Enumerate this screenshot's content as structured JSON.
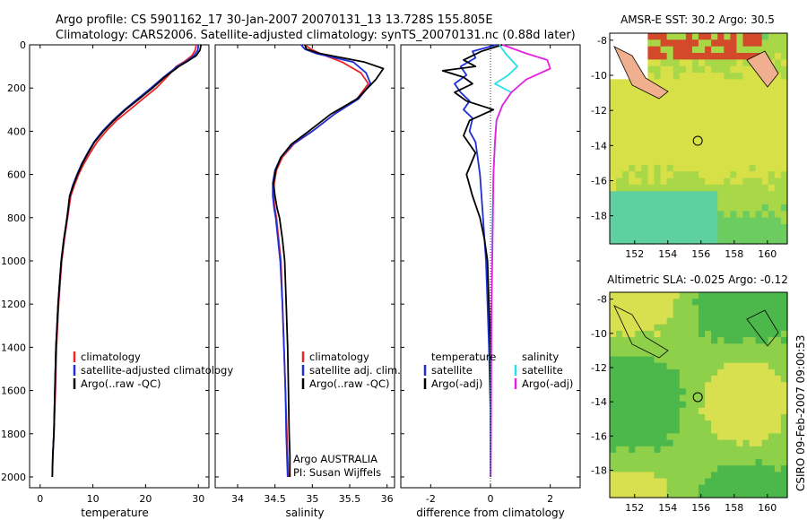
{
  "header": {
    "line1": "Argo profile: CS 5901162_17 30-Jan-2007 20070131_13 13.728S 155.805E",
    "line2": "Climatology: CARS2006. Satellite-adjusted climatology: synTS_20070131.nc (0.88d later)"
  },
  "credit": "CSIRO 09-Feb-2007 09:00:53",
  "float_info": {
    "line1": "Argo AUSTRALIA",
    "line2": "PI: Susan Wijffels"
  },
  "colors": {
    "climatology": "#e8262a",
    "satellite_adjusted": "#1f2fd6",
    "argo": "#000000",
    "salinity_satellite": "#28e0e8",
    "salinity_argo": "#e820e0"
  },
  "chart_data": [
    {
      "type": "line",
      "id": "temperature",
      "xlabel": "temperature",
      "xlim": [
        -2,
        32
      ],
      "ylim": [
        0,
        2050
      ],
      "xticks": [
        0,
        10,
        20,
        30
      ],
      "yticks": [
        0,
        200,
        400,
        600,
        800,
        1000,
        1200,
        1400,
        1600,
        1800,
        2000
      ],
      "legend": [
        "climatology",
        "satellite-adjusted climatology",
        "Argo(..raw -QC)"
      ],
      "series": [
        {
          "name": "climatology",
          "color": "#e8262a",
          "x": [
            29.6,
            29.4,
            28.8,
            27.5,
            25.8,
            24.0,
            22.0,
            19.5,
            17.0,
            14.5,
            12.5,
            10.8,
            9.5,
            8.3,
            7.3,
            6.5,
            5.8,
            5.2,
            4.6,
            4.1,
            3.8,
            3.5,
            3.1,
            2.9,
            2.6,
            2.4
          ],
          "y": [
            0,
            25,
            50,
            75,
            100,
            150,
            200,
            250,
            300,
            350,
            400,
            450,
            500,
            550,
            600,
            650,
            700,
            800,
            900,
            1000,
            1100,
            1200,
            1400,
            1600,
            1800,
            1900
          ]
        },
        {
          "name": "satellite-adjusted climatology",
          "color": "#1f2fd6",
          "x": [
            30.0,
            29.9,
            29.2,
            27.8,
            26.0,
            23.4,
            21.0,
            18.5,
            16.0,
            13.8,
            11.8,
            10.2,
            9.0,
            7.9,
            7.0,
            6.2,
            5.6,
            5.1,
            4.5,
            4.0,
            3.7,
            3.4,
            3.0,
            2.8,
            2.6,
            2.4,
            2.3
          ],
          "y": [
            0,
            25,
            50,
            75,
            100,
            150,
            200,
            250,
            300,
            350,
            400,
            450,
            500,
            550,
            600,
            650,
            700,
            800,
            900,
            1000,
            1100,
            1200,
            1400,
            1600,
            1800,
            1900,
            2000
          ]
        },
        {
          "name": "Argo(..raw -QC)",
          "color": "#000000",
          "x": [
            30.5,
            30.3,
            29.6,
            28.0,
            26.3,
            23.6,
            21.3,
            18.8,
            16.2,
            14.0,
            12.0,
            10.3,
            9.1,
            8.0,
            7.1,
            6.3,
            5.6,
            5.1,
            4.5,
            4.0,
            3.7,
            3.4,
            3.0,
            2.8,
            2.6,
            2.4,
            2.3
          ],
          "y": [
            0,
            25,
            50,
            75,
            100,
            150,
            200,
            250,
            300,
            350,
            400,
            450,
            500,
            550,
            600,
            650,
            700,
            800,
            900,
            1000,
            1100,
            1200,
            1400,
            1600,
            1800,
            1900,
            2000
          ]
        }
      ]
    },
    {
      "type": "line",
      "id": "salinity",
      "xlabel": "salinity",
      "xlim": [
        33.7,
        36.1
      ],
      "ylim": [
        0,
        2050
      ],
      "xticks": [
        34,
        34.5,
        35,
        35.5,
        36
      ],
      "legend": [
        "climatology",
        "satellite adj. clim.",
        "Argo(..raw -QC)"
      ],
      "series": [
        {
          "name": "climatology",
          "color": "#e8262a",
          "x": [
            34.9,
            34.98,
            35.1,
            35.4,
            35.65,
            35.75,
            35.6,
            35.3,
            35.0,
            34.75,
            34.6,
            34.52,
            34.49,
            34.48,
            34.5,
            34.52,
            34.55,
            34.58,
            34.6,
            34.62,
            34.64,
            34.66,
            34.67,
            34.68
          ],
          "y": [
            0,
            20,
            40,
            80,
            130,
            180,
            250,
            320,
            400,
            460,
            520,
            580,
            640,
            700,
            760,
            800,
            900,
            1000,
            1200,
            1400,
            1600,
            1800,
            1900,
            2000
          ]
        },
        {
          "name": "satellite adj. clim.",
          "color": "#1f2fd6",
          "x": [
            34.85,
            34.9,
            35.05,
            35.55,
            35.72,
            35.78,
            35.62,
            35.3,
            35.0,
            34.74,
            34.58,
            34.5,
            34.47,
            34.47,
            34.49,
            34.51,
            34.54,
            34.57,
            34.6,
            34.62,
            34.64,
            34.65,
            34.66,
            34.67
          ],
          "y": [
            0,
            20,
            40,
            80,
            130,
            180,
            250,
            320,
            400,
            460,
            520,
            580,
            640,
            700,
            760,
            800,
            900,
            1000,
            1200,
            1400,
            1600,
            1800,
            1900,
            2000
          ]
        },
        {
          "name": "Argo(..raw -QC)",
          "color": "#000000",
          "x": [
            34.9,
            34.92,
            35.1,
            35.7,
            35.95,
            35.85,
            35.6,
            35.25,
            34.95,
            34.72,
            34.58,
            34.51,
            34.48,
            34.5,
            34.53,
            34.56,
            34.6,
            34.63,
            34.65,
            34.67,
            34.68,
            34.69,
            34.7,
            34.7
          ],
          "y": [
            0,
            20,
            40,
            80,
            110,
            160,
            250,
            320,
            400,
            460,
            520,
            580,
            640,
            700,
            760,
            800,
            900,
            1000,
            1200,
            1400,
            1600,
            1800,
            1900,
            2000
          ]
        }
      ]
    },
    {
      "type": "line",
      "id": "difference",
      "xlabel": "difference from climatology",
      "xlim": [
        -3,
        3
      ],
      "ylim": [
        0,
        2050
      ],
      "xticks": [
        -2,
        0,
        2
      ],
      "legend_left_title": "temperature",
      "legend_right_title": "salinity",
      "legend": [
        "satellite",
        "Argo(-adj)",
        "satellite",
        "Argo(-adj)"
      ],
      "series": [
        {
          "name": "temperature satellite",
          "color": "#1f2fd6",
          "x": [
            0.2,
            -0.6,
            -0.5,
            -1.0,
            -0.8,
            -1.2,
            -1.0,
            -0.7,
            -0.9,
            -0.6,
            -0.7,
            -0.5,
            -0.45,
            -0.35,
            -0.3,
            -0.25,
            -0.2,
            -0.15,
            -0.1,
            -0.05,
            0,
            0
          ],
          "y": [
            0,
            30,
            60,
            100,
            140,
            180,
            220,
            260,
            300,
            340,
            400,
            450,
            500,
            600,
            700,
            800,
            900,
            1000,
            1200,
            1400,
            1700,
            2000
          ]
        },
        {
          "name": "temperature Argo(-adj)",
          "color": "#000000",
          "x": [
            0.4,
            -0.3,
            -0.9,
            -0.5,
            -1.6,
            -0.9,
            -0.6,
            -1.2,
            -0.8,
            0.1,
            -0.7,
            -0.9,
            -0.5,
            -0.8,
            -0.6,
            -0.35,
            -0.2,
            -0.1,
            -0.05,
            0,
            0
          ],
          "y": [
            0,
            30,
            70,
            100,
            120,
            150,
            180,
            220,
            260,
            300,
            350,
            420,
            500,
            600,
            700,
            800,
            900,
            1000,
            1200,
            1400,
            2000
          ]
        },
        {
          "name": "salinity satellite",
          "color": "#28e0e8",
          "x": [
            0.3,
            0.5,
            0.9,
            0.6,
            0.15,
            0.7,
            0.4,
            0.2,
            0.15,
            0.1,
            0.07,
            0.05,
            0.03,
            0.02,
            0.01,
            0
          ],
          "y": [
            0,
            40,
            100,
            140,
            180,
            220,
            280,
            350,
            450,
            600,
            800,
            1000,
            1200,
            1400,
            1700,
            2000
          ]
        },
        {
          "name": "salinity Argo(-adj)",
          "color": "#e820e0",
          "x": [
            0.4,
            1.2,
            1.9,
            2.0,
            1.2,
            0.7,
            0.4,
            0.2,
            0.15,
            0.1,
            0.08,
            0.06,
            0.04,
            0.03,
            0.02,
            0.01
          ],
          "y": [
            0,
            40,
            70,
            110,
            160,
            220,
            280,
            350,
            450,
            600,
            800,
            1000,
            1200,
            1400,
            1700,
            2000
          ]
        }
      ]
    },
    {
      "type": "heatmap",
      "id": "sst_map",
      "title": "AMSR-E SST: 30.2 Argo: 30.5",
      "xlim": [
        150.5,
        161.2
      ],
      "ylim": [
        -19.6,
        -7.6
      ],
      "xticks": [
        152,
        154,
        156,
        158,
        160
      ],
      "yticks": [
        -8,
        -10,
        -12,
        -14,
        -16,
        -18
      ],
      "argo_position": {
        "lon": 155.805,
        "lat": -13.728
      }
    },
    {
      "type": "heatmap",
      "id": "sla_map",
      "title": "Altimetric SLA: -0.025 Argo: -0.12",
      "xlim": [
        150.5,
        161.2
      ],
      "ylim": [
        -19.6,
        -7.6
      ],
      "xticks": [
        152,
        154,
        156,
        158,
        160
      ],
      "yticks": [
        -8,
        -10,
        -12,
        -14,
        -16,
        -18
      ],
      "argo_position": {
        "lon": 155.805,
        "lat": -13.728
      }
    }
  ]
}
